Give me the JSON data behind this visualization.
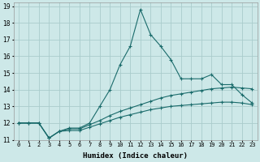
{
  "xlabel": "Humidex (Indice chaleur)",
  "bg_color": "#cde8e8",
  "grid_color": "#aacccc",
  "line_color": "#1a6b6b",
  "xlim": [
    -0.5,
    23.5
  ],
  "ylim": [
    11,
    19.2
  ],
  "xtick_labels": [
    "0",
    "1",
    "2",
    "3",
    "4",
    "5",
    "6",
    "7",
    "8",
    "9",
    "10",
    "11",
    "12",
    "13",
    "14",
    "15",
    "16",
    "17",
    "18",
    "19",
    "20",
    "21",
    "22",
    "23"
  ],
  "xtick_vals": [
    0,
    1,
    2,
    3,
    4,
    5,
    6,
    7,
    8,
    9,
    10,
    11,
    12,
    13,
    14,
    15,
    16,
    17,
    18,
    19,
    20,
    21,
    22,
    23
  ],
  "ytick_vals": [
    11,
    12,
    13,
    14,
    15,
    16,
    17,
    18,
    19
  ],
  "series": [
    {
      "x": [
        0,
        1,
        2,
        3,
        4,
        5,
        6,
        7,
        8,
        9,
        10,
        11,
        12,
        13,
        14,
        15,
        16,
        17,
        18,
        19,
        20,
        21,
        22,
        23
      ],
      "y": [
        12.0,
        12.0,
        12.0,
        11.1,
        11.5,
        11.7,
        11.7,
        12.0,
        13.0,
        14.0,
        15.5,
        16.6,
        18.8,
        17.3,
        16.6,
        15.8,
        14.65,
        14.65,
        14.65,
        14.9,
        14.3,
        14.3,
        13.7,
        13.2
      ]
    },
    {
      "x": [
        0,
        1,
        2,
        3,
        4,
        5,
        6,
        7,
        8,
        9,
        10,
        11,
        12,
        13,
        14,
        15,
        16,
        17,
        18,
        19,
        20,
        21,
        22,
        23
      ],
      "y": [
        12.0,
        12.0,
        12.0,
        11.1,
        11.5,
        11.65,
        11.65,
        11.9,
        12.15,
        12.45,
        12.7,
        12.9,
        13.1,
        13.3,
        13.5,
        13.65,
        13.75,
        13.85,
        13.95,
        14.05,
        14.1,
        14.15,
        14.1,
        14.05
      ]
    },
    {
      "x": [
        0,
        1,
        2,
        3,
        4,
        5,
        6,
        7,
        8,
        9,
        10,
        11,
        12,
        13,
        14,
        15,
        16,
        17,
        18,
        19,
        20,
        21,
        22,
        23
      ],
      "y": [
        12.0,
        12.0,
        12.0,
        11.1,
        11.5,
        11.55,
        11.55,
        11.75,
        11.95,
        12.15,
        12.35,
        12.5,
        12.65,
        12.8,
        12.9,
        13.0,
        13.05,
        13.1,
        13.15,
        13.2,
        13.25,
        13.25,
        13.2,
        13.1
      ]
    }
  ]
}
